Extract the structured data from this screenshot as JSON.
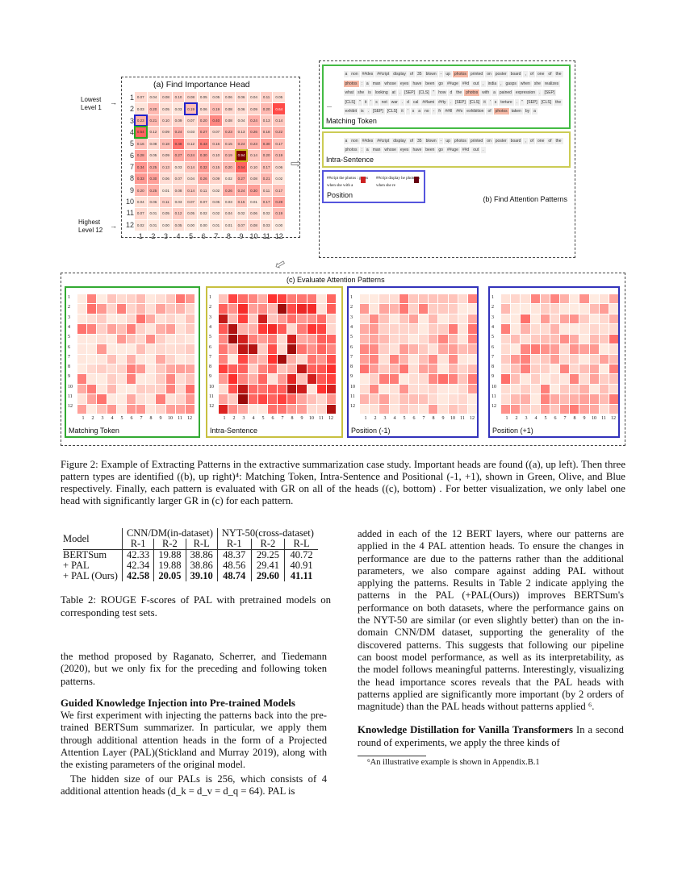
{
  "figure": {
    "panel_a": {
      "title": "(a) Find Importance Head",
      "lowest_label": "Lowest\nLevel 1",
      "highest_label": "Highest\nLevel 12",
      "rows": [
        "1",
        "2",
        "3",
        "4",
        "5",
        "6",
        "7",
        "8",
        "9",
        "10",
        "11",
        "12"
      ],
      "cols": [
        "1",
        "2",
        "3",
        "4",
        "5",
        "6",
        "7",
        "8",
        "9",
        "10",
        "11",
        "12"
      ],
      "values": [
        [
          0.07,
          0.04,
          0.08,
          0.1,
          0.08,
          0.05,
          0.05,
          0.06,
          0.06,
          0.04,
          0.11,
          0.05
        ],
        [
          0.03,
          0.2,
          0.05,
          0.03,
          0.19,
          0.06,
          0.19,
          0.08,
          0.06,
          0.09,
          0.2,
          0.64
        ],
        [
          0.23,
          0.21,
          0.1,
          0.09,
          0.07,
          0.2,
          0.4,
          0.08,
          0.04,
          0.24,
          0.13,
          0.14
        ],
        [
          0.54,
          0.12,
          0.09,
          0.24,
          0.03,
          0.27,
          0.07,
          0.23,
          0.13,
          0.26,
          0.18,
          0.22
        ],
        [
          0.16,
          0.08,
          0.18,
          0.48,
          0.12,
          0.43,
          0.16,
          0.15,
          0.24,
          0.23,
          0.3,
          0.17
        ],
        [
          0.28,
          0.05,
          0.09,
          0.27,
          0.24,
          0.3,
          0.1,
          0.19,
          0.94,
          0.14,
          0.2,
          0.19
        ],
        [
          0.34,
          0.25,
          0.13,
          0.03,
          0.14,
          0.32,
          0.15,
          0.2,
          0.54,
          0.1,
          0.17,
          0.06
        ],
        [
          0.33,
          0.3,
          0.06,
          0.07,
          0.04,
          0.26,
          0.09,
          0.02,
          0.27,
          0.08,
          0.21,
          0.02
        ],
        [
          0.2,
          0.25,
          0.01,
          0.08,
          0.14,
          0.11,
          0.02,
          0.26,
          0.24,
          0.3,
          0.11,
          0.17
        ],
        [
          0.04,
          0.06,
          0.11,
          0.03,
          0.07,
          0.07,
          0.05,
          0.03,
          0.15,
          0.01,
          0.17,
          0.28
        ],
        [
          0.07,
          0.01,
          0.05,
          0.12,
          0.05,
          0.02,
          0.02,
          0.04,
          0.02,
          0.06,
          0.02,
          0.19
        ],
        [
          0.02,
          0.01,
          0.0,
          0.05,
          0.0,
          0.0,
          0.01,
          0.01,
          0.07,
          0.08,
          0.03,
          0.0
        ]
      ],
      "highlights": [
        {
          "row": 2,
          "col": 5,
          "color": "#2222cc"
        },
        {
          "row": 3,
          "col": 1,
          "color": "#2222cc"
        },
        {
          "row": 4,
          "col": 1,
          "color": "#22aa22"
        },
        {
          "row": 6,
          "col": 9,
          "color": "#ccbb22"
        }
      ]
    },
    "panel_b": {
      "title": "(b) Find Attention Patterns",
      "matching_label": "Matching Token",
      "intra_label": "Intra-Sentence",
      "position_label": "Position",
      "ellipsis": "...",
      "matching_tokens": "a non ##des ##cript display of 35 blown - up photos printed on poster board , of one of the photos : a man whose eyes have been go ##uge ##d out , india , gasps when she realizes what she is looking at . [SEP] [CLS] \" how d the photos with a pained expression . [SEP] [CLS] \" it ' s not war . d cal ##lami ##ty . [SEP] [CLS] it ' s torture . \" [SEP] [CLS] the exhibit is . [SEP] [CLS] it ' s a no - fr ##ill ##s exhibition of photos taken by a",
      "intra_tokens": "a non ##des ##cript display of 35 blown - up photos printed on poster board , of one of the photos : a man whose eyes have been go ##uge ##d out .",
      "position_left": "##cript the photos : gasps when she with a",
      "position_right": "##cript display he photos a when she re"
    },
    "panel_c": {
      "title": "(c) Evaluate Attention Patterns",
      "panels": [
        {
          "label": "Matching Token",
          "color": "#33aa33"
        },
        {
          "label": "Intra-Sentence",
          "color": "#c8c040"
        },
        {
          "label": "Position (-1)",
          "color": "#3333bb"
        },
        {
          "label": "Position (+1)",
          "color": "#3333bb"
        }
      ]
    },
    "caption": "Figure 2: Example of Extracting Patterns in the extractive summarization case study. Important heads are found ((a), up left). Then three pattern types are identified ((b), up right)⁴: Matching Token, Intra-Sentence and Positional (-1, +1), shown in Green, Olive, and Blue respectively. Finally, each pattern is evaluated with GR on all of the heads ((c), bottom) . For better visualization, we only label one head with significantly larger GR in (c) for each pattern."
  },
  "table": {
    "model_header": "Model",
    "group1": "CNN/DM(in-dataset)",
    "group2": "NYT-50(cross-dataset)",
    "metrics": [
      "R-1",
      "R-2",
      "R-L",
      "R-1",
      "R-2",
      "R-L"
    ],
    "rows": [
      {
        "model": "BERTSum",
        "values": [
          "42.33",
          "19.88",
          "38.86",
          "48.37",
          "29.25",
          "40.72"
        ]
      },
      {
        "model": "+ PAL",
        "values": [
          "42.34",
          "19.88",
          "38.86",
          "48.56",
          "29.41",
          "40.91"
        ]
      },
      {
        "model": "+ PAL (Ours)",
        "values": [
          "42.58",
          "20.05",
          "39.10",
          "48.74",
          "29.60",
          "41.11"
        ]
      }
    ],
    "caption": "Table 2: ROUGE F-scores of PAL with pretrained models on corresponding test sets."
  },
  "left": {
    "p1": "the method proposed by Raganato, Scherrer, and Tiedemann (2020), but we only fix for the preceding and following token patterns.",
    "h1": "Guided Knowledge Injection into Pre-trained Models",
    "p2": "We first experiment with injecting the patterns back into the pre-trained BERTSum summarizer. In particular, we apply them through additional attention heads in the form of a Projected Attention Layer (PAL)(Stickland and Murray 2019), along with the existing parameters of the original model.",
    "p3": "The hidden size of our PALs is 256, which consists of 4 additional attention heads (d_k = d_v = d_q = 64). PAL is"
  },
  "right": {
    "p1": "added in each of the 12 BERT layers, where our patterns are applied in the 4 PAL attention heads. To ensure the changes in performance are due to the patterns rather than the additional parameters, we also compare against adding PAL without applying the patterns. Results in Table 2 indicate applying the patterns in the PAL (+PAL(Ours)) improves BERTSum's performance on both datasets, where the performance gains on the NYT-50 are similar (or even slightly better) than on the in-domain CNN/DM dataset, supporting the generality of the discovered patterns. This suggests that following our pipeline can boost model performance, as well as its interpretability, as the model follows meaningful patterns. Interestingly, visualizing the head importance scores reveals that the PAL heads with patterns applied are significantly more important (by 2 orders of magnitude) than the PAL heads without patterns applied ⁶.",
    "h2": "Knowledge Distillation for Vanilla Transformers",
    "p2": "In a second round of experiments, we apply the three kinds of",
    "footnote": "⁶An illustrative example is shown in Appendix.B.1"
  }
}
